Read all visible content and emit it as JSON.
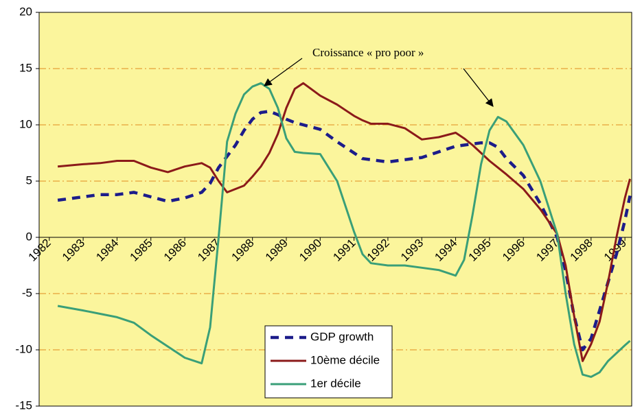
{
  "chart_data": {
    "type": "line",
    "annotation": "Croissance « pro poor »",
    "x": [
      1982.25,
      1983,
      1983.5,
      1984,
      1984.5,
      1985,
      1985.5,
      1986,
      1986.5,
      1986.75,
      1987,
      1987.25,
      1987.5,
      1987.75,
      1988,
      1988.25,
      1988.5,
      1988.75,
      1989,
      1989.25,
      1989.5,
      1990,
      1990.5,
      1991,
      1991.25,
      1991.5,
      1992,
      1992.5,
      1993,
      1993.5,
      1994,
      1994.25,
      1994.5,
      1994.75,
      1995,
      1995.25,
      1995.5,
      1996,
      1996.5,
      1997,
      1997.25,
      1997.5,
      1997.75,
      1998,
      1998.25,
      1998.5,
      1998.75,
      1999,
      1999.15
    ],
    "series": [
      {
        "name": "GDP growth",
        "color": "#1c1c8a",
        "dashed": true,
        "values": [
          3.3,
          3.6,
          3.8,
          3.8,
          4.0,
          3.6,
          3.2,
          3.5,
          4.0,
          4.8,
          6.2,
          7.2,
          8.2,
          9.5,
          10.5,
          11.1,
          11.2,
          10.9,
          10.5,
          10.2,
          10.0,
          9.6,
          8.5,
          7.5,
          7.0,
          6.9,
          6.7,
          6.9,
          7.1,
          7.6,
          8.1,
          8.2,
          8.3,
          8.4,
          8.4,
          8.0,
          7.0,
          5.5,
          3.0,
          0,
          -3,
          -7,
          -10,
          -9,
          -6.5,
          -4,
          -1.5,
          1.5,
          3.7
        ]
      },
      {
        "name": "10ème décile",
        "color": "#8b1a1a",
        "dashed": false,
        "values": [
          6.3,
          6.5,
          6.6,
          6.8,
          6.8,
          6.2,
          5.8,
          6.3,
          6.6,
          6.2,
          5.0,
          4.0,
          4.3,
          4.6,
          5.4,
          6.3,
          7.5,
          9.2,
          11.5,
          13.2,
          13.7,
          12.6,
          11.8,
          10.8,
          10.4,
          10.1,
          10.1,
          9.7,
          8.7,
          8.9,
          9.3,
          8.8,
          8.2,
          7.5,
          6.8,
          6.2,
          5.6,
          4.3,
          2.5,
          0.3,
          -2.5,
          -7,
          -11.0,
          -9.5,
          -7.5,
          -4,
          0,
          3.5,
          5.2
        ]
      },
      {
        "name": "1er décile",
        "color": "#3a9f78",
        "dashed": false,
        "values": [
          -6.1,
          -6.5,
          -6.8,
          -7.1,
          -7.6,
          -8.7,
          -9.7,
          -10.7,
          -11.2,
          -8,
          0,
          8.5,
          11,
          12.7,
          13.4,
          13.7,
          13.2,
          11.5,
          8.8,
          7.6,
          7.5,
          7.4,
          5,
          0.5,
          -1.5,
          -2.3,
          -2.5,
          -2.5,
          -2.7,
          -2.9,
          -3.4,
          -2,
          2,
          6.5,
          9.5,
          10.7,
          10.3,
          8.2,
          5,
          0.3,
          -5,
          -9.5,
          -12.2,
          -12.4,
          -12.0,
          -11.0,
          -10.3,
          -9.6,
          -9.2
        ]
      }
    ],
    "xlim": [
      1981.7,
      1999.2
    ],
    "xticks": [
      1982,
      1983,
      1984,
      1985,
      1986,
      1987,
      1988,
      1989,
      1990,
      1991,
      1992,
      1993,
      1994,
      1995,
      1996,
      1997,
      1998,
      1999
    ],
    "ylim": [
      -15,
      20
    ],
    "yticks": [
      -15,
      -10,
      -5,
      0,
      5,
      10,
      15,
      20
    ],
    "grid": true,
    "legend": "lower center",
    "background": "#fbf59c"
  }
}
